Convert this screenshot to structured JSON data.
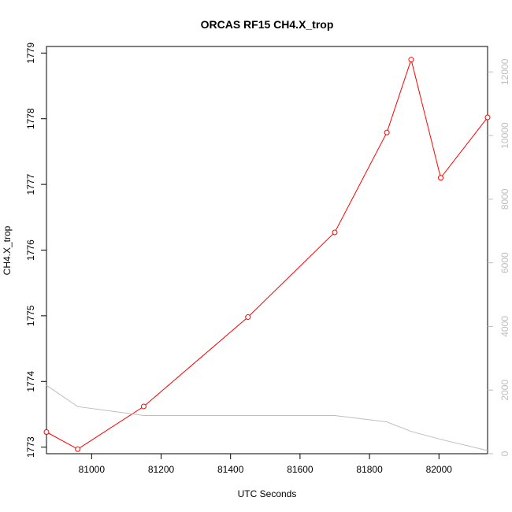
{
  "chart_data": {
    "type": "line",
    "title": "ORCAS RF15 CH4.X_trop",
    "xlabel": "UTC Seconds",
    "ylabel": "CH4.X_trop",
    "xlim": [
      80870,
      82140
    ],
    "ylim": [
      1772.9,
      1779.1
    ],
    "y2lim": [
      0,
      12800
    ],
    "x_ticks": [
      81000,
      81200,
      81400,
      81600,
      81800,
      82000
    ],
    "y_ticks": [
      1773,
      1774,
      1775,
      1776,
      1777,
      1778,
      1779
    ],
    "y2_ticks": [
      0,
      2000,
      4000,
      6000,
      8000,
      10000,
      12000
    ],
    "grid": false,
    "colors": {
      "primary": "#ff0000",
      "secondary": "#bebebe"
    },
    "series": [
      {
        "marker": "open-circle",
        "axis": "left",
        "color": "#ff0000",
        "points": [
          {
            "x": 80870,
            "y": 1773.23
          },
          {
            "x": 80960,
            "y": 1772.97
          },
          {
            "x": 81150,
            "y": 1773.62
          },
          {
            "x": 81450,
            "y": 1774.98
          },
          {
            "x": 81700,
            "y": 1776.27
          },
          {
            "x": 81850,
            "y": 1777.79
          },
          {
            "x": 81920,
            "y": 1778.9
          },
          {
            "x": 82005,
            "y": 1777.1
          },
          {
            "x": 82140,
            "y": 1778.02
          }
        ]
      },
      {
        "marker": "none",
        "axis": "right",
        "color": "#bebebe",
        "points": [
          {
            "x": 80870,
            "y": 2150
          },
          {
            "x": 80960,
            "y": 1480
          },
          {
            "x": 81150,
            "y": 1200
          },
          {
            "x": 81450,
            "y": 1200
          },
          {
            "x": 81700,
            "y": 1200
          },
          {
            "x": 81850,
            "y": 1000
          },
          {
            "x": 81920,
            "y": 700
          },
          {
            "x": 82005,
            "y": 450
          },
          {
            "x": 82140,
            "y": 100
          }
        ]
      }
    ]
  }
}
